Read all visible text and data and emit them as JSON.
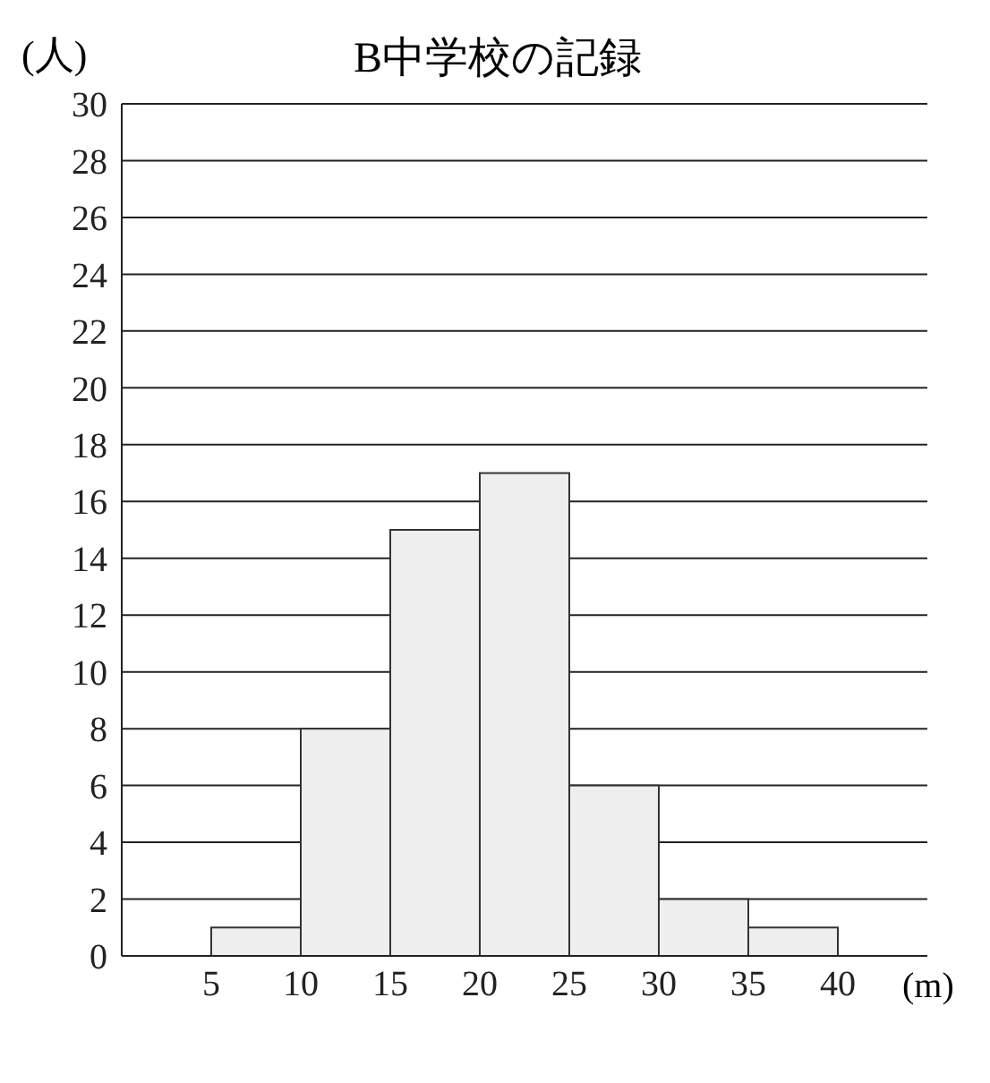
{
  "chart_data": {
    "type": "histogram",
    "title": "B中学校の記録",
    "xlabel": "(m)",
    "ylabel": "(人)",
    "bins": [
      5,
      10,
      15,
      20,
      25,
      30,
      35,
      40
    ],
    "values": [
      1,
      8,
      15,
      17,
      6,
      2,
      1
    ],
    "color": "#eeeeee",
    "xlim": [
      0,
      45
    ],
    "xticks": [
      5,
      10,
      15,
      20,
      25,
      30,
      35,
      40
    ],
    "ylim": [
      0,
      30
    ],
    "yticks": [
      0,
      2,
      4,
      6,
      8,
      10,
      12,
      14,
      16,
      18,
      20,
      22,
      24,
      26,
      28,
      30
    ],
    "grid": "y"
  }
}
